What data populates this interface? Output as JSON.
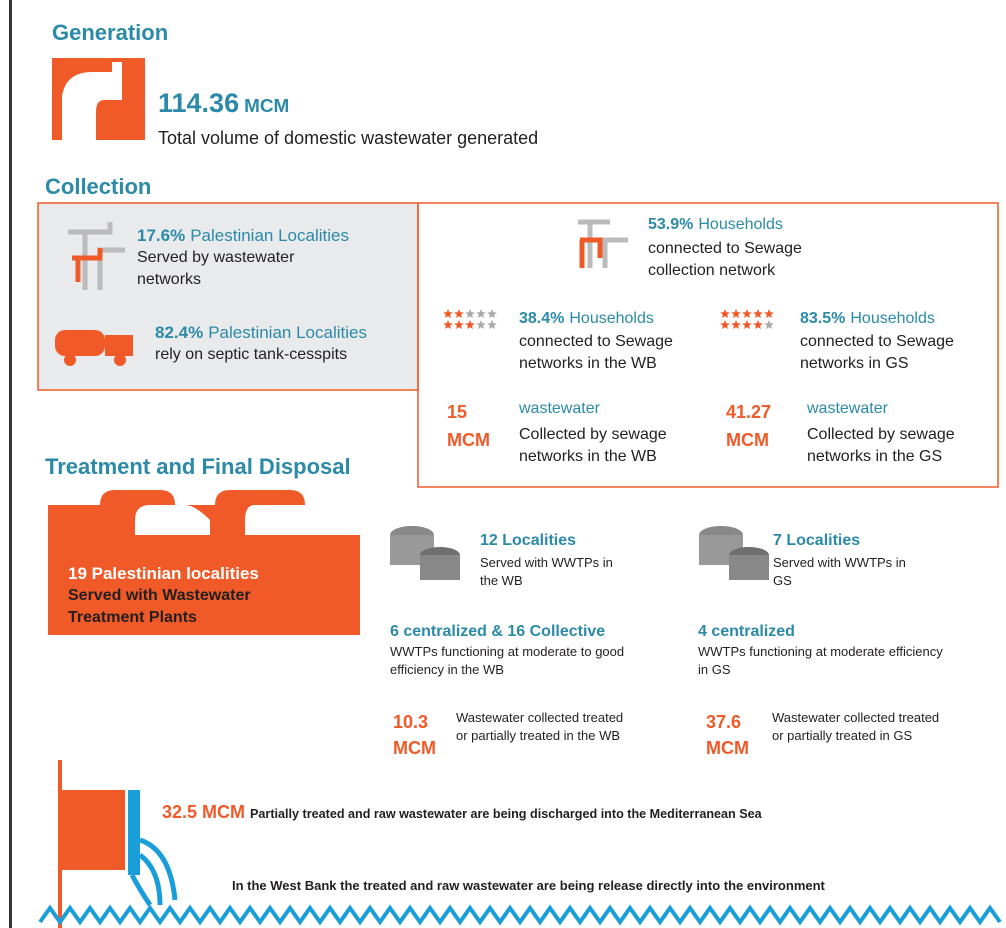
{
  "generation": {
    "title": "Generation",
    "value": "114.36",
    "unit": "MCM",
    "description": "Total volume of domestic wastewater generated"
  },
  "collection": {
    "title": "Collection",
    "localities_served": {
      "value": "17.6%",
      "label": "Palestinian Localities",
      "description": "Served by wastewater networks"
    },
    "localities_septic": {
      "value": "82.4%",
      "label": "Palestinian Localities",
      "description": "rely on septic tank-cesspits"
    },
    "households": {
      "value": "53.9%",
      "label": "Households",
      "description": "connected to Sewage collection network"
    },
    "households_wb": {
      "value": "38.4%",
      "label": "Households",
      "description": "connected to Sewage networks in the WB"
    },
    "households_gs": {
      "value": "83.5%",
      "label": "Households",
      "description": "connected to Sewage networks in GS"
    },
    "collected_wb": {
      "value": "15",
      "unit": "MCM",
      "label": "wastewater",
      "description": "Collected by sewage networks in the WB"
    },
    "collected_gs": {
      "value": "41.27",
      "unit": "MCM",
      "label": "wastewater",
      "description": "Collected by sewage networks in the GS"
    }
  },
  "treatment": {
    "title": "Treatment and  Final Disposal",
    "plants": {
      "label": "19 Palestinian localities",
      "description": "Served with Wastewater Treatment Plants"
    },
    "wb": {
      "localities": "12 Localities",
      "served": "Served with WWTPs in the WB",
      "plants": "6 centralized & 16 Collective",
      "efficiency": "WWTPs functioning at moderate to good efficiency in the WB",
      "value": "10.3",
      "unit": "MCM",
      "treated": "Wastewater collected treated or partially treated in the WB"
    },
    "gs": {
      "localities": "7 Localities",
      "served": "Served with WWTPs in GS",
      "plants": "4 centralized",
      "efficiency": "WWTPs functioning at moderate efficiency in GS",
      "value": "37.6",
      "unit": "MCM",
      "treated": "Wastewater collected treated or partially treated in GS"
    }
  },
  "disposal": {
    "value": "32.5 MCM",
    "sea": "Partially treated and raw wastewater are being discharged into the Mediterranean Sea",
    "west_bank": "In the West Bank the treated and raw  wastewater are being release directly into the environment"
  }
}
